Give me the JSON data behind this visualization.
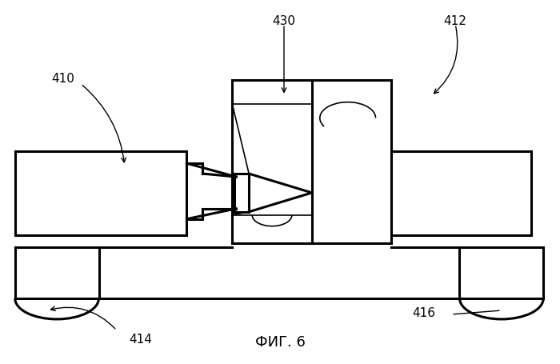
{
  "title": "ФИГ. 6",
  "bg_color": "#ffffff",
  "line_color": "#000000",
  "lw_thin": 1.2,
  "lw_thick": 2.2
}
